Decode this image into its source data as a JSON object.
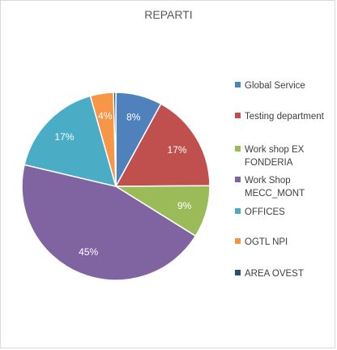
{
  "chart_data": {
    "type": "pie",
    "title": "REPARTI",
    "legend_position": "right",
    "slices": [
      {
        "name": "Global Service",
        "value": 8,
        "label": "8%",
        "color": "#4f81bd"
      },
      {
        "name": "Testing department",
        "value": 17,
        "label": "17%",
        "color": "#c0504d"
      },
      {
        "name": "Work shop EX FONDERIA",
        "value": 9,
        "label": "9%",
        "color": "#9bbb59"
      },
      {
        "name": "Work Shop MECC_MONT",
        "value": 45,
        "label": "45%",
        "color": "#8064a2"
      },
      {
        "name": "OFFICES",
        "value": 17,
        "label": "17%",
        "color": "#4bacc6"
      },
      {
        "name": "OGTL NPI",
        "value": 4,
        "label": "4%",
        "color": "#f79646"
      },
      {
        "name": "AREA OVEST",
        "value": 0.4,
        "label": "",
        "color": "#2c4d75"
      }
    ]
  }
}
